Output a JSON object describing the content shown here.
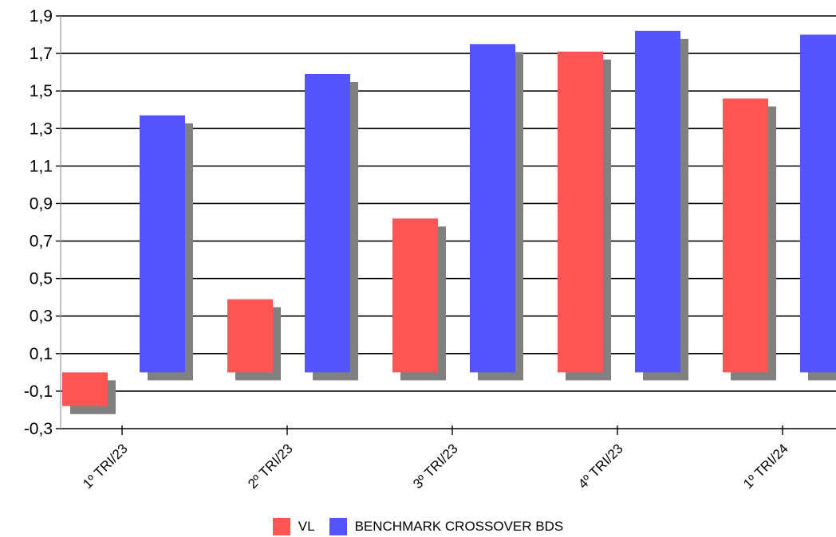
{
  "chart_data": {
    "type": "bar",
    "categories": [
      "1º TRI/23",
      "2º TRI/23",
      "3º TRI/23",
      "4º TRI/23",
      "1º TRI/24"
    ],
    "series": [
      {
        "name": "VL",
        "color": "#ff5555",
        "values": [
          -0.18,
          0.39,
          0.82,
          1.71,
          1.46
        ]
      },
      {
        "name": "BENCHMARK CROSSOVER BDS",
        "color": "#5555ff",
        "values": [
          1.37,
          1.59,
          1.75,
          1.82,
          1.8
        ]
      }
    ],
    "ylim": [
      -0.3,
      1.9
    ],
    "yticks": [
      "1,9",
      "1,7",
      "1,5",
      "1,3",
      "1,1",
      "0,9",
      "0,7",
      "0,5",
      "0,3",
      "0,1",
      "-0,1",
      "-0,3"
    ],
    "grid": true,
    "legend_position": "bottom",
    "title": "",
    "xlabel": "",
    "ylabel": ""
  }
}
